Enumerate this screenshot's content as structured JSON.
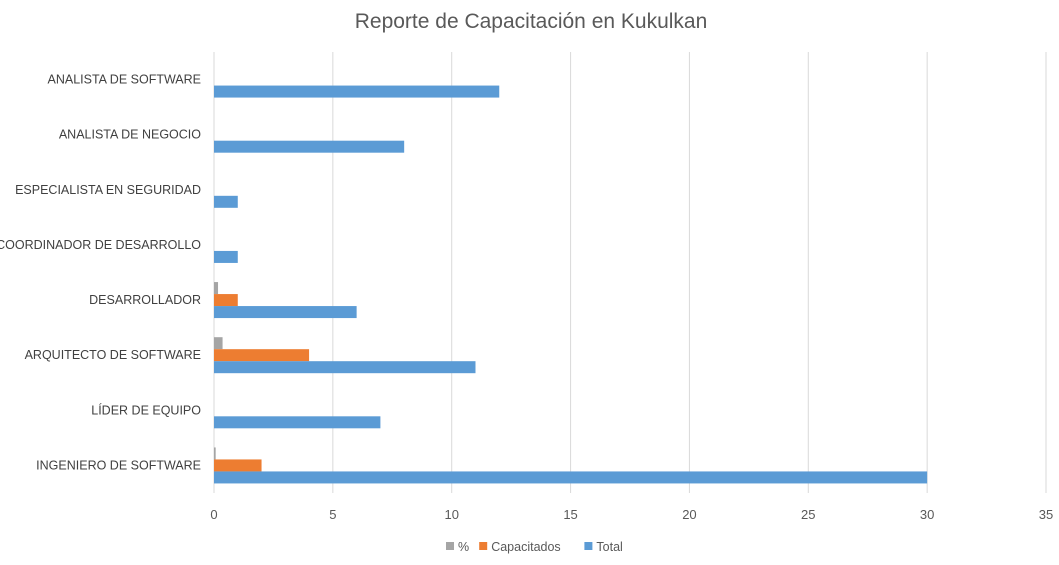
{
  "chart_data": {
    "type": "bar",
    "orientation": "horizontal",
    "title": "Reporte de Capacitación en Kukulkan",
    "xlabel": "",
    "ylabel": "",
    "xlim": [
      0,
      35
    ],
    "x_ticks": [
      0,
      5,
      10,
      15,
      20,
      25,
      30,
      35
    ],
    "grid": true,
    "legend_position": "bottom",
    "categories": [
      "INGENIERO DE SOFTWARE",
      "LÍDER DE EQUIPO",
      "ARQUITECTO DE SOFTWARE",
      "DESARROLLADOR",
      "COORDINADOR DE DESARROLLO",
      "ESPECIALISTA EN SEGURIDAD",
      "ANALISTA DE NEGOCIO",
      "ANALISTA DE SOFTWARE"
    ],
    "series": [
      {
        "name": "%",
        "color": "#a5a5a5",
        "values": [
          0.07,
          0,
          0.36,
          0.17,
          0,
          0,
          0,
          0
        ]
      },
      {
        "name": "Capacitados",
        "color": "#ed7d31",
        "values": [
          2,
          0,
          4,
          1,
          0,
          0,
          0,
          0
        ]
      },
      {
        "name": "Total",
        "color": "#5b9bd5",
        "values": [
          30,
          7,
          11,
          6,
          1,
          1,
          8,
          12
        ]
      }
    ]
  }
}
